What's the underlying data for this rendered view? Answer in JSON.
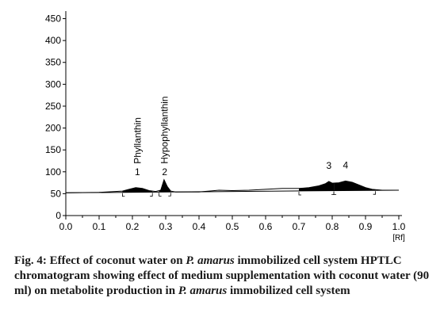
{
  "chart_data": {
    "type": "line",
    "title": "",
    "xlabel": "",
    "x_unit": "[Rf]",
    "ylabel": "",
    "xlim": [
      0.0,
      1.0
    ],
    "ylim": [
      0,
      460
    ],
    "x_ticks": [
      "0.0",
      "0.1",
      "0.2",
      "0.3",
      "0.4",
      "0.5",
      "0.6",
      "0.7",
      "0.8",
      "0.9",
      "1.0"
    ],
    "y_ticks": [
      "0",
      "50",
      "100",
      "150",
      "200",
      "250",
      "300",
      "350",
      "400",
      "450"
    ],
    "grid": false,
    "baseline": {
      "x": [
        0.0,
        1.0
      ],
      "y": [
        52,
        58
      ]
    },
    "series": [
      {
        "x": [
          0.0,
          0.1,
          0.17,
          0.19,
          0.21,
          0.23,
          0.25,
          0.27,
          0.285,
          0.295,
          0.305,
          0.315,
          0.33,
          0.4,
          0.43,
          0.46,
          0.5,
          0.55,
          0.6,
          0.65,
          0.7,
          0.73,
          0.76,
          0.78,
          0.79,
          0.8,
          0.82,
          0.84,
          0.86,
          0.88,
          0.9,
          0.92,
          0.95,
          1.0
        ],
        "y": [
          52,
          53,
          56,
          60,
          64,
          62,
          57,
          55,
          58,
          82,
          66,
          56,
          54,
          54,
          56,
          58,
          57,
          58,
          60,
          62,
          62,
          64,
          68,
          73,
          78,
          74,
          75,
          79,
          76,
          70,
          64,
          60,
          58,
          58
        ]
      }
    ],
    "peaks": [
      {
        "number": "1",
        "name": "Phyllanthin",
        "rf": 0.215,
        "start": 0.17,
        "end": 0.26
      },
      {
        "number": "2",
        "name": "Hypophyllanthin",
        "rf": 0.297,
        "start": 0.28,
        "end": 0.315
      },
      {
        "number": "3",
        "rf": 0.79,
        "start": 0.7,
        "end": 0.805
      },
      {
        "number": "4",
        "rf": 0.84,
        "start": 0.805,
        "end": 0.93
      }
    ]
  },
  "caption": {
    "prefix": "Fig. 4: Effect of coconut water on ",
    "species1": "P. amarus",
    "mid1": " immobilized cell system HPTLC chromatogram showing effect of medium supplementation with coconut water (90 ml) on metabolite production in ",
    "species2": "P. amarus",
    "suffix": " immobilized cell system"
  }
}
